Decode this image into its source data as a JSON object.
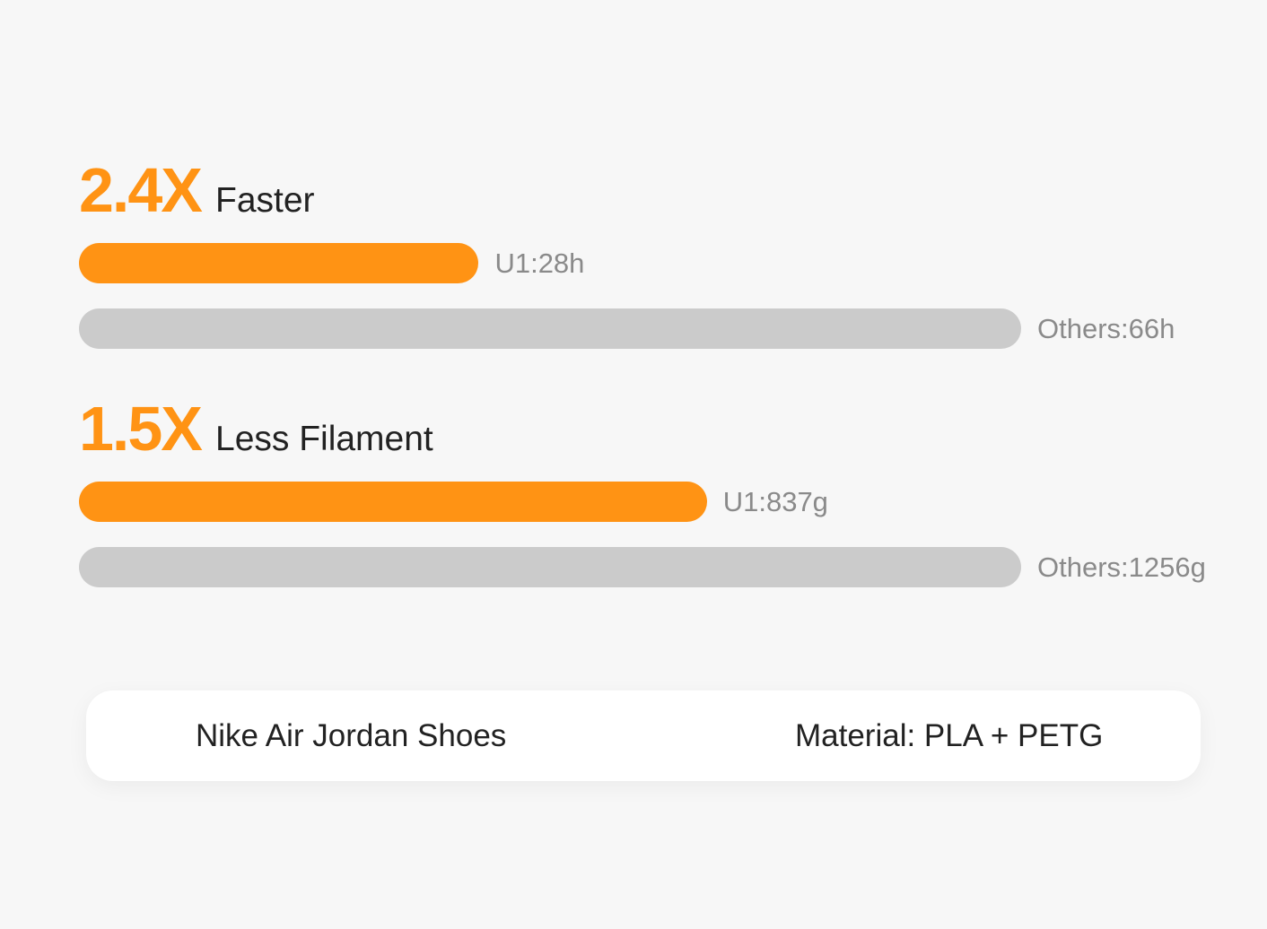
{
  "colors": {
    "u1": "#ff9314",
    "others": "#cbcbcb",
    "background": "#f7f7f7"
  },
  "chart_data": [
    {
      "type": "bar",
      "orientation": "horizontal",
      "headline": "2.4X",
      "subtitle": "Faster",
      "categories": [
        "U1",
        "Others"
      ],
      "values": [
        28,
        66
      ],
      "unit": "h",
      "labels": [
        "U1:28h",
        "Others:66h"
      ]
    },
    {
      "type": "bar",
      "orientation": "horizontal",
      "headline": "1.5X",
      "subtitle": "Less Filament",
      "categories": [
        "U1",
        "Others"
      ],
      "values": [
        837,
        1256
      ],
      "unit": "g",
      "labels": [
        "U1:837g",
        "Others:1256g"
      ]
    }
  ],
  "footer": {
    "model": "Nike Air Jordan Shoes",
    "material": "Material: PLA + PETG"
  }
}
